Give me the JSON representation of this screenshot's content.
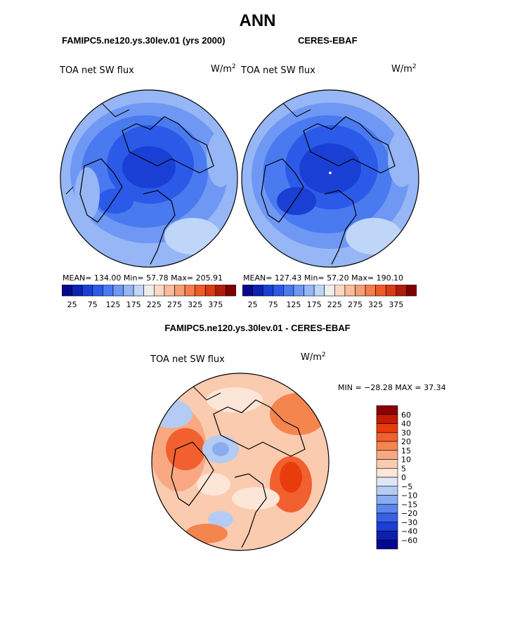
{
  "main_title": "ANN",
  "panels": [
    {
      "title": "FAMIPC5.ne120.ys.30lev.01 (yrs 2000)",
      "variable": "TOA net SW flux",
      "units_base": "W/m",
      "units_exp": "2",
      "stats": "MEAN= 134.00   Min=  57.78   Max= 205.91"
    },
    {
      "title": "CERES-EBAF",
      "variable": "TOA net SW flux",
      "units_base": "W/m",
      "units_exp": "2",
      "stats": "MEAN= 127.43   Min=  57.20   Max= 190.10"
    }
  ],
  "abs_colorbar": {
    "colors": [
      "#08088c",
      "#0c22b0",
      "#1a3fd4",
      "#2c5ae8",
      "#4a7af0",
      "#6f98f4",
      "#96b6f6",
      "#c0d6f8",
      "#eeeeee",
      "#fbd8c4",
      "#f9bc9c",
      "#f79e74",
      "#f57c4c",
      "#ef5a28",
      "#d83a14",
      "#b01c08",
      "#800000"
    ],
    "labels": [
      "25",
      "75",
      "125",
      "175",
      "225",
      "275",
      "325",
      "375"
    ]
  },
  "diff": {
    "title": "FAMIPC5.ne120.ys.30lev.01 - CERES-EBAF",
    "variable": "TOA net SW flux",
    "units_base": "W/m",
    "units_exp": "2",
    "stats": "MIN = −28.28 MAX =  37.34"
  },
  "diff_colorbar": {
    "colors": [
      "#8a0000",
      "#c41a00",
      "#e83c0c",
      "#f26030",
      "#f5854e",
      "#f8a882",
      "#fbcbb0",
      "#fbe6d8",
      "#dce8f6",
      "#b4ccf4",
      "#8aacf0",
      "#5c86ec",
      "#3660e6",
      "#1c3ed6",
      "#0c20b0",
      "#040890"
    ],
    "labels": [
      "60",
      "40",
      "30",
      "20",
      "15",
      "10",
      "5",
      "0",
      "−5",
      "−10",
      "−15",
      "−20",
      "−30",
      "−40",
      "−60"
    ]
  },
  "chart_data": [
    {
      "type": "heatmap",
      "title": "FAMIPC5.ne120.ys.30lev.01 (yrs 2000)",
      "variable": "TOA net SW flux",
      "units": "W/m^2",
      "projection": "north polar stereographic",
      "mean": 134.0,
      "min": 57.78,
      "max": 205.91,
      "contour_levels": [
        25,
        50,
        75,
        100,
        125,
        150,
        175,
        200,
        225,
        250,
        275,
        300,
        325,
        350,
        375
      ]
    },
    {
      "type": "heatmap",
      "title": "CERES-EBAF",
      "variable": "TOA net SW flux",
      "units": "W/m^2",
      "projection": "north polar stereographic",
      "mean": 127.43,
      "min": 57.2,
      "max": 190.1,
      "contour_levels": [
        25,
        50,
        75,
        100,
        125,
        150,
        175,
        200,
        225,
        250,
        275,
        300,
        325,
        350,
        375
      ]
    },
    {
      "type": "heatmap",
      "title": "FAMIPC5.ne120.ys.30lev.01 - CERES-EBAF",
      "variable": "TOA net SW flux",
      "units": "W/m^2",
      "projection": "north polar stereographic",
      "min": -28.28,
      "max": 37.34,
      "contour_levels": [
        -60,
        -40,
        -30,
        -20,
        -15,
        -10,
        -5,
        0,
        5,
        10,
        15,
        20,
        30,
        40,
        60
      ]
    }
  ]
}
